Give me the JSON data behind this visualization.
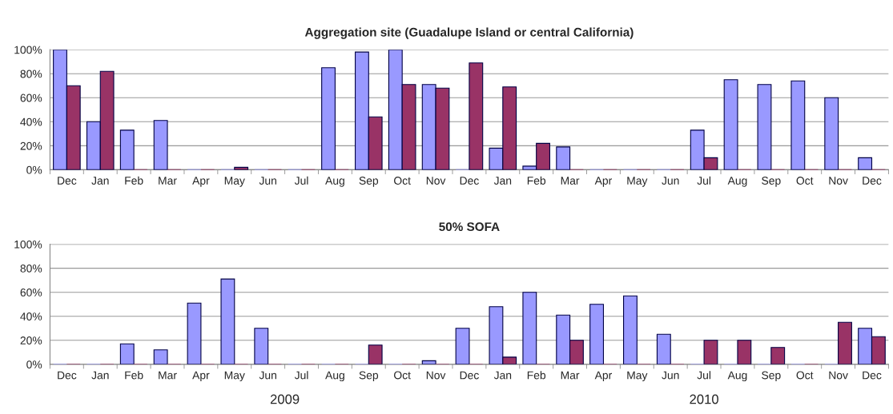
{
  "chart_data": [
    {
      "type": "bar",
      "title": "Aggregation site (Guadalupe Island or central California)",
      "categories": [
        "Dec",
        "Jan",
        "Feb",
        "Mar",
        "Apr",
        "May",
        "Jun",
        "Jul",
        "Aug",
        "Sep",
        "Oct",
        "Nov",
        "Dec",
        "Jan",
        "Feb",
        "Mar",
        "Apr",
        "May",
        "Jun",
        "Jul",
        "Aug",
        "Sep",
        "Oct",
        "Nov",
        "Dec"
      ],
      "series": [
        {
          "color": "#9999ff",
          "values": [
            100,
            40,
            33,
            41,
            0,
            0,
            0,
            0,
            85,
            98,
            100,
            71,
            0,
            18,
            3,
            19,
            0,
            0,
            0,
            33,
            75,
            71,
            74,
            60,
            10
          ]
        },
        {
          "color": "#993366",
          "values": [
            70,
            82,
            0,
            0,
            0,
            2,
            0,
            0,
            0,
            44,
            71,
            68,
            89,
            69,
            22,
            0,
            0,
            0,
            0,
            10,
            0,
            0,
            0,
            0,
            0
          ]
        }
      ],
      "ylim": [
        0,
        100
      ],
      "yticks": [
        {
          "value": 0,
          "label": "0%"
        },
        {
          "value": 20,
          "label": "20%"
        },
        {
          "value": 40,
          "label": "40%"
        },
        {
          "value": 60,
          "label": "60%"
        },
        {
          "value": 80,
          "label": "80%"
        },
        {
          "value": 100,
          "label": "100%"
        }
      ],
      "grid": "y",
      "legend": false
    },
    {
      "type": "bar",
      "title": "50% SOFA",
      "categories": [
        "Dec",
        "Jan",
        "Feb",
        "Mar",
        "Apr",
        "May",
        "Jun",
        "Jul",
        "Aug",
        "Sep",
        "Oct",
        "Nov",
        "Dec",
        "Jan",
        "Feb",
        "Mar",
        "Apr",
        "May",
        "Jun",
        "Jul",
        "Aug",
        "Sep",
        "Oct",
        "Nov",
        "Dec"
      ],
      "series": [
        {
          "color": "#9999ff",
          "values": [
            0,
            0,
            17,
            12,
            51,
            71,
            30,
            0,
            0,
            0,
            0,
            3,
            30,
            48,
            60,
            41,
            50,
            57,
            25,
            0,
            0,
            0,
            0,
            0,
            30
          ]
        },
        {
          "color": "#993366",
          "values": [
            0,
            0,
            0,
            0,
            0,
            0,
            0,
            0,
            0,
            16,
            0,
            0,
            0,
            6,
            0,
            20,
            0,
            0,
            0,
            20,
            20,
            14,
            0,
            35,
            23
          ]
        }
      ],
      "ylim": [
        0,
        100
      ],
      "yticks": [
        {
          "value": 0,
          "label": "0%"
        },
        {
          "value": 20,
          "label": "20%"
        },
        {
          "value": 40,
          "label": "40%"
        },
        {
          "value": 60,
          "label": "60%"
        },
        {
          "value": 80,
          "label": "80%"
        },
        {
          "value": 100,
          "label": "100%"
        }
      ],
      "grid": "y",
      "legend": false,
      "annotations": [
        "2009",
        "2010"
      ]
    }
  ]
}
